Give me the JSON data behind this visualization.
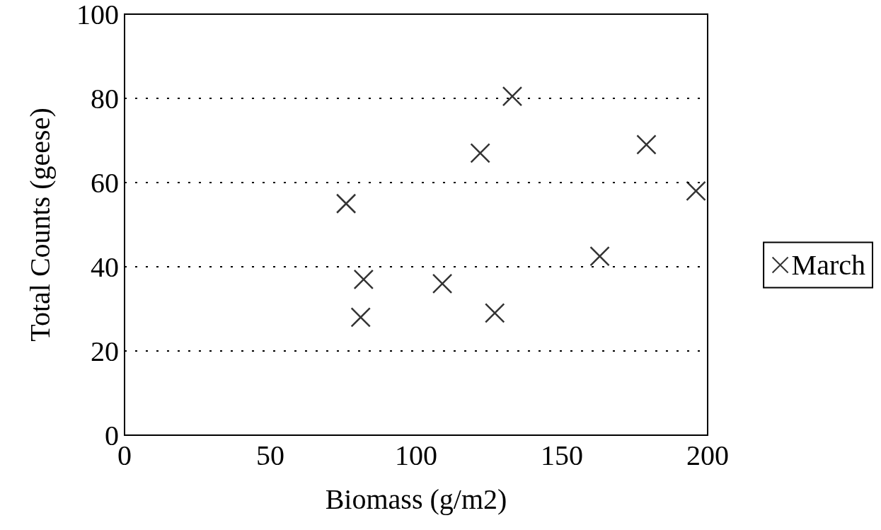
{
  "chart_data": {
    "type": "scatter",
    "xlabel": "Biomass (g/m2)",
    "ylabel": "Total Counts (geese)",
    "x": [
      76,
      82,
      81,
      109,
      122,
      127,
      133,
      163,
      179,
      196
    ],
    "series": [
      {
        "name": "March",
        "color": "#000000",
        "values": [
          55,
          37,
          28,
          36,
          67,
          29,
          80.5,
          42.5,
          69,
          58
        ]
      }
    ],
    "xlim": [
      0,
      200
    ],
    "xticks": [
      0,
      50,
      100,
      150,
      200
    ],
    "ylim": [
      0,
      100
    ],
    "yticks": [
      0,
      20,
      40,
      60,
      80,
      100
    ],
    "grid": "y",
    "legend": "right",
    "marker": "cross"
  }
}
